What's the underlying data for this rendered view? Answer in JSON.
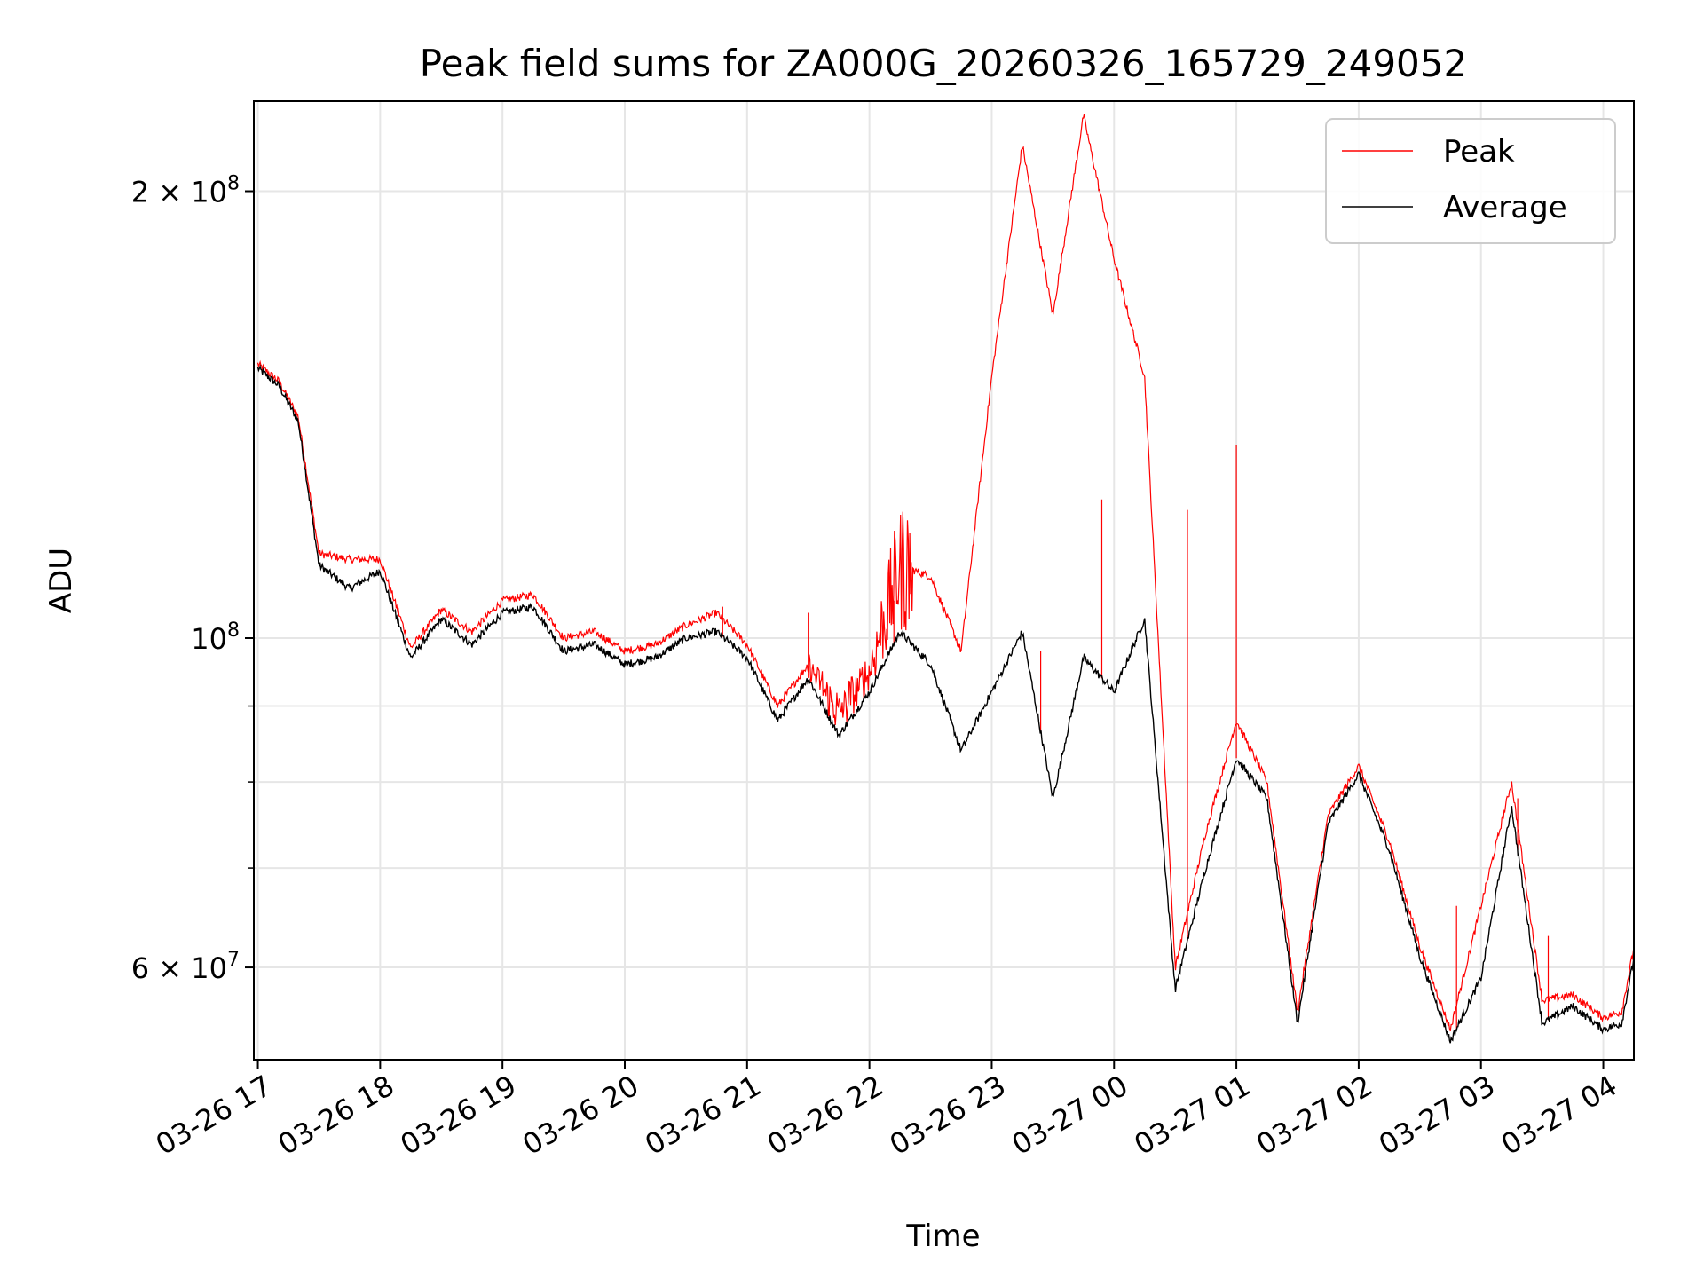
{
  "chart_data": {
    "type": "line",
    "title": "Peak field sums for ZA000G_20260326_165729_249052",
    "xlabel": "Time",
    "ylabel": "ADU",
    "yscale": "log",
    "ylim": [
      52000000,
      230000000
    ],
    "xlim": [
      "03-26 16:58",
      "03-27 04:15"
    ],
    "grid": true,
    "legend_position": "top-right",
    "x_ticks": [
      "03-26 17",
      "03-26 18",
      "03-26 19",
      "03-26 20",
      "03-26 21",
      "03-26 22",
      "03-26 23",
      "03-27 00",
      "03-27 01",
      "03-27 02",
      "03-27 03",
      "03-27 04"
    ],
    "y_major_ticks": [
      {
        "value": 60000000,
        "base": "6 × 10",
        "exp": "7"
      },
      {
        "value": 100000000,
        "base": "10",
        "exp": "8"
      },
      {
        "value": 200000000,
        "base": "2 × 10",
        "exp": "8"
      }
    ],
    "y_minor_ticks": [
      70000000,
      80000000,
      90000000
    ],
    "x_hours": [
      0,
      0.17,
      0.33,
      0.5,
      0.75,
      1.0,
      1.25,
      1.5,
      1.75,
      2.0,
      2.25,
      2.5,
      2.75,
      3.0,
      3.25,
      3.5,
      3.75,
      4.0,
      4.25,
      4.5,
      4.75,
      5.0,
      5.25,
      5.5,
      5.75,
      6.0,
      6.25,
      6.5,
      6.75,
      7.0,
      7.25,
      7.5,
      7.75,
      8.0,
      8.25,
      8.5,
      8.75,
      9.0,
      9.25,
      9.5,
      9.75,
      10.0,
      10.25,
      10.5,
      10.75,
      11.0,
      11.15,
      11.3
    ],
    "series": [
      {
        "name": "Average",
        "color": "#000000",
        "values": [
          152000000,
          148000000,
          140000000,
          112000000,
          108000000,
          111000000,
          97000000,
          103000000,
          99000000,
          104000000,
          105000000,
          98000000,
          99000000,
          96000000,
          97000000,
          100000000,
          101000000,
          97000000,
          88000000,
          94000000,
          86000000,
          92000000,
          101000000,
          96000000,
          84000000,
          92000000,
          101000000,
          78000000,
          97000000,
          92000000,
          103000000,
          58000000,
          70000000,
          83000000,
          78000000,
          55000000,
          75000000,
          81000000,
          72000000,
          61000000,
          53500000,
          59000000,
          77000000,
          55000000,
          56500000,
          54500000,
          55000000,
          64000000
        ]
      },
      {
        "name": "Peak",
        "color": "#ff0000",
        "values": [
          153000000,
          149000000,
          141000000,
          114000000,
          113000000,
          113000000,
          98500000,
          104500000,
          101000000,
          106000000,
          107000000,
          100000000,
          101000000,
          98000000,
          99000000,
          102000000,
          104000000,
          99000000,
          90000000,
          96000000,
          89000000,
          95000000,
          112000000,
          110000000,
          98000000,
          150000000,
          215000000,
          165000000,
          225000000,
          180000000,
          150000000,
          60000000,
          74000000,
          88000000,
          80000000,
          56000000,
          76000000,
          82000000,
          73000000,
          62000000,
          54500000,
          66000000,
          80000000,
          57000000,
          57500000,
          55500000,
          56000000,
          65000000
        ]
      }
    ],
    "peak_spikes": [
      {
        "hour": 3.8,
        "value": 105000000
      },
      {
        "hour": 4.5,
        "value": 104000000
      },
      {
        "hour": 5.2,
        "value": 106000000
      },
      {
        "hour": 6.4,
        "value": 98000000
      },
      {
        "hour": 6.9,
        "value": 124000000
      },
      {
        "hour": 7.6,
        "value": 122000000
      },
      {
        "hour": 8.0,
        "value": 135000000
      },
      {
        "hour": 9.8,
        "value": 66000000
      },
      {
        "hour": 10.3,
        "value": 78000000
      },
      {
        "hour": 10.55,
        "value": 63000000
      }
    ]
  },
  "legend": {
    "peak_label": "Peak",
    "average_label": "Average"
  }
}
